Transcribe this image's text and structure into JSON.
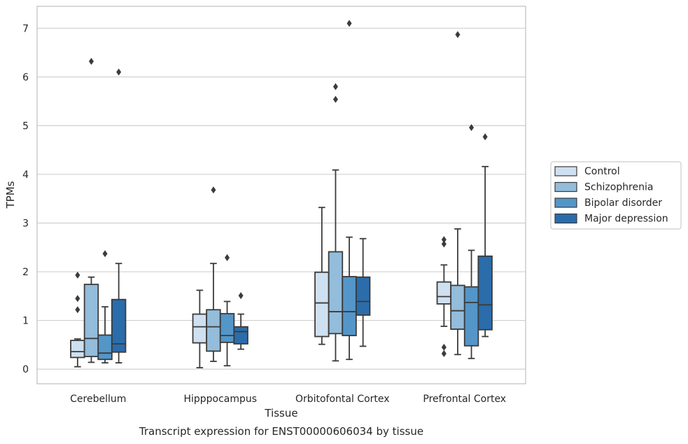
{
  "chart_data": {
    "type": "boxplot",
    "caption": "Transcript expression for ENST00000606034 by tissue",
    "xlabel": "Tissue",
    "ylabel": "TPMs",
    "ylim": [
      -0.3,
      7.45
    ],
    "yticks": [
      0,
      1,
      2,
      3,
      4,
      5,
      6,
      7
    ],
    "grid": "horizontal",
    "legend_position": "right",
    "categories": [
      "Cerebellum",
      "Hipppocampus",
      "Orbitofontal Cortex",
      "Prefrontal Cortex"
    ],
    "series": [
      {
        "name": "Control",
        "color": "#cfe0f0",
        "boxes": [
          {
            "whisker_low": 0.05,
            "q1": 0.24,
            "median": 0.36,
            "q3": 0.59,
            "whisker_high": 0.62,
            "outliers": [
              1.93,
              1.45,
              1.22
            ]
          },
          {
            "whisker_low": 0.03,
            "q1": 0.54,
            "median": 0.87,
            "q3": 1.13,
            "whisker_high": 1.62,
            "outliers": []
          },
          {
            "whisker_low": 0.51,
            "q1": 0.67,
            "median": 1.36,
            "q3": 1.99,
            "whisker_high": 3.32,
            "outliers": []
          },
          {
            "whisker_low": 0.88,
            "q1": 1.34,
            "median": 1.49,
            "q3": 1.79,
            "whisker_high": 2.14,
            "outliers": [
              2.66,
              2.57,
              0.45,
              0.32
            ]
          }
        ]
      },
      {
        "name": "Schizophrenia",
        "color": "#94bcdb",
        "boxes": [
          {
            "whisker_low": 0.14,
            "q1": 0.26,
            "median": 0.63,
            "q3": 1.74,
            "whisker_high": 1.89,
            "outliers": [
              6.32
            ]
          },
          {
            "whisker_low": 0.16,
            "q1": 0.37,
            "median": 0.87,
            "q3": 1.22,
            "whisker_high": 2.17,
            "outliers": [
              3.68
            ]
          },
          {
            "whisker_low": 0.17,
            "q1": 0.73,
            "median": 1.18,
            "q3": 2.41,
            "whisker_high": 4.09,
            "outliers": [
              5.8,
              5.54
            ]
          },
          {
            "whisker_low": 0.3,
            "q1": 0.82,
            "median": 1.2,
            "q3": 1.72,
            "whisker_high": 2.88,
            "outliers": [
              6.87
            ]
          }
        ]
      },
      {
        "name": "Bipolar disorder",
        "color": "#5496c8",
        "boxes": [
          {
            "whisker_low": 0.13,
            "q1": 0.2,
            "median": 0.33,
            "q3": 0.7,
            "whisker_high": 1.28,
            "outliers": [
              2.37
            ]
          },
          {
            "whisker_low": 0.07,
            "q1": 0.55,
            "median": 0.69,
            "q3": 1.14,
            "whisker_high": 1.39,
            "outliers": [
              2.29
            ]
          },
          {
            "whisker_low": 0.2,
            "q1": 0.69,
            "median": 1.18,
            "q3": 1.9,
            "whisker_high": 2.71,
            "outliers": [
              7.1
            ]
          },
          {
            "whisker_low": 0.22,
            "q1": 0.48,
            "median": 1.37,
            "q3": 1.69,
            "whisker_high": 2.44,
            "outliers": [
              4.96
            ]
          }
        ]
      },
      {
        "name": "Major depression",
        "color": "#2b6cab",
        "boxes": [
          {
            "whisker_low": 0.13,
            "q1": 0.35,
            "median": 0.52,
            "q3": 1.43,
            "whisker_high": 2.17,
            "outliers": [
              6.1
            ]
          },
          {
            "whisker_low": 0.41,
            "q1": 0.52,
            "median": 0.77,
            "q3": 0.87,
            "whisker_high": 1.13,
            "outliers": [
              1.51
            ]
          },
          {
            "whisker_low": 0.47,
            "q1": 1.11,
            "median": 1.39,
            "q3": 1.89,
            "whisker_high": 2.68,
            "outliers": []
          },
          {
            "whisker_low": 0.67,
            "q1": 0.81,
            "median": 1.32,
            "q3": 2.32,
            "whisker_high": 4.16,
            "outliers": [
              4.77
            ]
          }
        ]
      }
    ]
  }
}
